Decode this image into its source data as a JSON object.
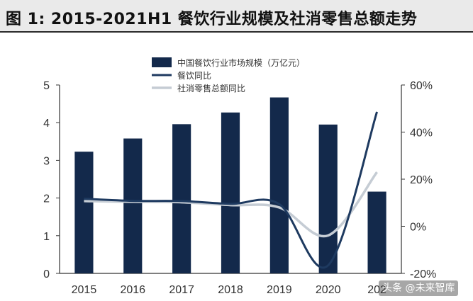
{
  "title": "图 1:  2015-2021H1 餐饮行业规模及社消零售总额走势",
  "watermark": "头条 @未来智库",
  "colors": {
    "bar": "#13294b",
    "line_catering": "#1e3a60",
    "line_retail": "#c5ccd4",
    "axis": "#333333"
  },
  "chart_data": {
    "type": "bar+line",
    "categories": [
      "2015",
      "2016",
      "2017",
      "2018",
      "2019",
      "2020",
      "2021H1"
    ],
    "category_labels_shown": [
      "2015",
      "2016",
      "2017",
      "2018",
      "2019",
      "2020",
      "202"
    ],
    "series": [
      {
        "name": "中国餐饮行业市场规模（万亿元）",
        "type": "bar",
        "axis": "left",
        "values": [
          3.23,
          3.58,
          3.96,
          4.27,
          4.67,
          3.95,
          2.17
        ]
      },
      {
        "name": "餐饮同比",
        "type": "line",
        "axis": "right",
        "values": [
          11.7,
          10.8,
          10.7,
          9.5,
          9.4,
          -16.6,
          48.6
        ]
      },
      {
        "name": "社消零售总额同比",
        "type": "line",
        "axis": "right",
        "values": [
          10.7,
          10.4,
          10.2,
          9.0,
          8.0,
          -3.9,
          23.0
        ]
      }
    ],
    "left_axis": {
      "ylim": [
        0,
        5
      ],
      "ticks": [
        "0",
        "1",
        "2",
        "3",
        "4",
        "5"
      ]
    },
    "right_axis": {
      "ylim": [
        -20,
        60
      ],
      "ticks": [
        "-20%",
        "0%",
        "20%",
        "40%",
        "60%"
      ]
    },
    "legend_position": "top-center"
  }
}
